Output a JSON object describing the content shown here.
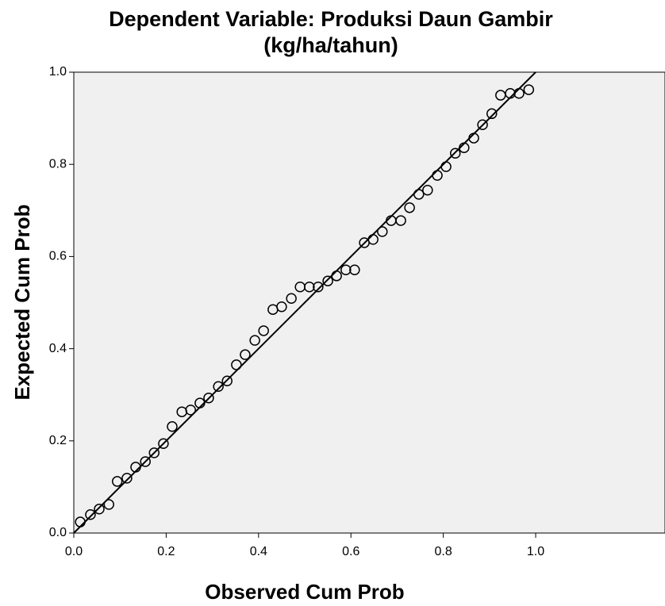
{
  "chart_data": {
    "type": "scatter",
    "title": [
      "Dependent Variable: Produksi Daun Gambir",
      "(kg/ha/tahun)"
    ],
    "xlabel": "Observed Cum Prob",
    "ylabel": "Expected Cum Prob",
    "xlim": [
      0,
      1.28
    ],
    "ylim": [
      0,
      1
    ],
    "xticks": [
      {
        "value": 0,
        "label": "0.0"
      },
      0.2,
      0.4,
      0.6,
      0.8,
      {
        "value": 1,
        "label": "1.0"
      }
    ],
    "yticks": [
      {
        "value": 0,
        "label": "0.0"
      },
      0.2,
      0.4,
      0.6,
      0.8,
      {
        "value": 1,
        "label": "1.0"
      }
    ],
    "background": "#f0f0f0",
    "color": "#000000",
    "x": [
      0.014,
      0.036,
      0.055,
      0.076,
      0.094,
      0.115,
      0.134,
      0.155,
      0.174,
      0.194,
      0.213,
      0.234,
      0.253,
      0.273,
      0.292,
      0.313,
      0.332,
      0.352,
      0.371,
      0.392,
      0.411,
      0.431,
      0.45,
      0.471,
      0.49,
      0.51,
      0.529,
      0.55,
      0.569,
      0.589,
      0.608,
      0.629,
      0.648,
      0.668,
      0.687,
      0.708,
      0.727,
      0.747,
      0.766,
      0.787,
      0.806,
      0.826,
      0.845,
      0.866,
      0.885,
      0.905,
      0.924,
      0.945,
      0.964,
      0.985
    ],
    "values": [
      0.024,
      0.04,
      0.052,
      0.062,
      0.112,
      0.119,
      0.143,
      0.155,
      0.174,
      0.194,
      0.231,
      0.263,
      0.267,
      0.282,
      0.293,
      0.318,
      0.33,
      0.365,
      0.387,
      0.418,
      0.439,
      0.485,
      0.491,
      0.509,
      0.534,
      0.534,
      0.534,
      0.547,
      0.558,
      0.571,
      0.571,
      0.63,
      0.637,
      0.654,
      0.678,
      0.678,
      0.706,
      0.735,
      0.744,
      0.776,
      0.795,
      0.824,
      0.836,
      0.857,
      0.886,
      0.91,
      0.95,
      0.954,
      0.954,
      0.962
    ]
  }
}
